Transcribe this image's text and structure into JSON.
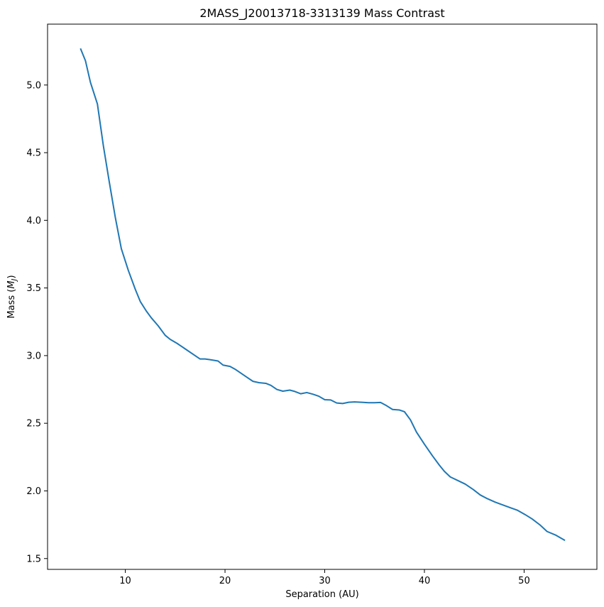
{
  "chart_data": {
    "type": "line",
    "title": "2MASS_J20013718-3313139 Mass Contrast",
    "xlabel": "Separation (AU)",
    "ylabel_prefix": "Mass (",
    "ylabel_symbol": "M",
    "ylabel_subscript": "J",
    "ylabel_suffix": ")",
    "xlim": [
      2.2,
      57.3
    ],
    "ylim": [
      1.42,
      5.45
    ],
    "xticks": [
      10,
      20,
      30,
      40,
      50
    ],
    "yticks": [
      1.5,
      2.0,
      2.5,
      3.0,
      3.5,
      4.0,
      4.5,
      5.0
    ],
    "xtick_labels": [
      "10",
      "20",
      "30",
      "40",
      "50"
    ],
    "ytick_labels": [
      "1.5",
      "2.0",
      "2.5",
      "3.0",
      "3.5",
      "4.0",
      "4.5",
      "5.0"
    ],
    "grid": false,
    "line_color": "#1f77b4",
    "series": [
      {
        "x": [
          5.5,
          6.0,
          6.5,
          7.2,
          7.8,
          8.4,
          9.0,
          9.6,
          10.3,
          11.0,
          11.5,
          12.1,
          12.6,
          13.3,
          14.0,
          14.5,
          15.2,
          16.0,
          17.0,
          17.5,
          18.0,
          18.5,
          19.3,
          19.8,
          20.5,
          21.0,
          21.6,
          22.2,
          22.8,
          23.4,
          24.1,
          24.6,
          25.2,
          25.8,
          26.5,
          27.0,
          27.6,
          28.2,
          28.8,
          29.4,
          30.0,
          30.6,
          31.2,
          31.8,
          32.4,
          33.0,
          33.7,
          34.4,
          35.0,
          35.6,
          36.2,
          36.8,
          37.5,
          38.0,
          38.6,
          39.2,
          40.0,
          40.8,
          41.5,
          42.0,
          42.6,
          43.4,
          44.1,
          44.9,
          45.6,
          46.3,
          47.1,
          47.8,
          48.6,
          49.3,
          50.1,
          50.8,
          51.6,
          52.3,
          53.2,
          54.1
        ],
        "y": [
          5.27,
          5.18,
          5.02,
          4.86,
          4.55,
          4.28,
          4.02,
          3.79,
          3.63,
          3.49,
          3.4,
          3.33,
          3.28,
          3.22,
          3.15,
          3.12,
          3.09,
          3.05,
          3.0,
          2.975,
          2.975,
          2.97,
          2.96,
          2.93,
          2.92,
          2.9,
          2.87,
          2.84,
          2.81,
          2.8,
          2.795,
          2.78,
          2.75,
          2.737,
          2.745,
          2.735,
          2.718,
          2.727,
          2.715,
          2.7,
          2.674,
          2.672,
          2.65,
          2.646,
          2.655,
          2.658,
          2.655,
          2.652,
          2.652,
          2.654,
          2.63,
          2.602,
          2.598,
          2.585,
          2.525,
          2.435,
          2.345,
          2.26,
          2.19,
          2.145,
          2.103,
          2.075,
          2.05,
          2.01,
          1.97,
          1.943,
          1.917,
          1.898,
          1.876,
          1.858,
          1.825,
          1.793,
          1.748,
          1.7,
          1.672,
          1.634
        ]
      }
    ]
  }
}
